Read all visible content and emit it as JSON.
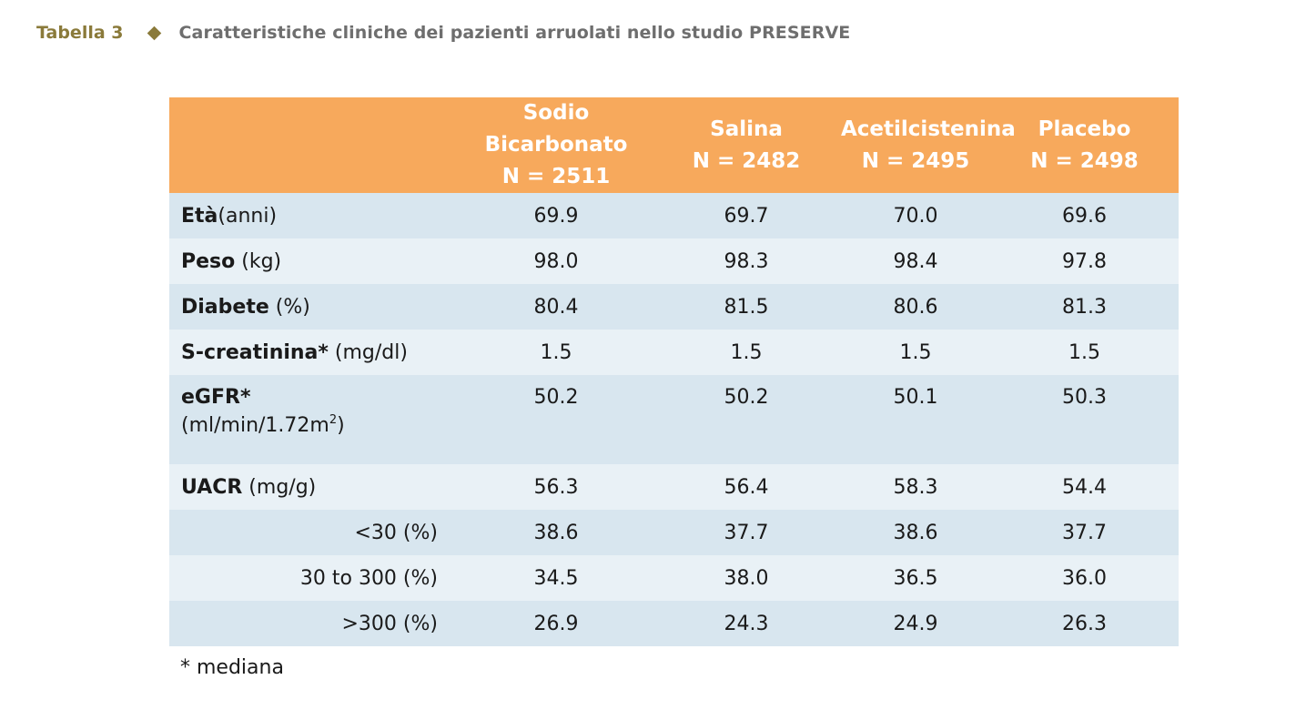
{
  "caption": {
    "label": "Tabella 3",
    "title": "Caratteristiche cliniche dei pazienti arruolati nello studio PRESERVE"
  },
  "table": {
    "columns": [
      {
        "name": "Sodio Bicarbonato",
        "n": "N = 2511"
      },
      {
        "name": "Salina",
        "n": "N = 2482"
      },
      {
        "name": "Acetilcistenina",
        "n": "N = 2495"
      },
      {
        "name": "Placebo",
        "n": "N = 2498"
      }
    ],
    "rows": [
      {
        "label_bold": "Età",
        "label_unit": "(anni)",
        "values": [
          "69.9",
          "69.7",
          "70.0",
          "69.6"
        ]
      },
      {
        "label_bold": "Peso",
        "label_unit": " (kg)",
        "values": [
          "98.0",
          "98.3",
          "98.4",
          "97.8"
        ]
      },
      {
        "label_bold": "Diabete",
        "label_unit": " (%)",
        "values": [
          "80.4",
          "81.5",
          "80.6",
          "81.3"
        ]
      },
      {
        "label_bold": "S-creatinina*",
        "label_unit": " (mg/dl)",
        "values": [
          "1.5",
          "1.5",
          "1.5",
          "1.5"
        ]
      },
      {
        "label_bold": "eGFR*",
        "label_unit": "(ml/min/1.72m",
        "label_sup": "2",
        "label_close": ")",
        "values": [
          "50.2",
          "50.2",
          "50.1",
          "50.3"
        ]
      },
      {
        "label_bold": "UACR",
        "label_unit": " (mg/g)",
        "values": [
          "56.3",
          "56.4",
          "58.3",
          "54.4"
        ]
      },
      {
        "label": "<30 (%)",
        "values": [
          "38.6",
          "37.7",
          "38.6",
          "37.7"
        ]
      },
      {
        "label": "30 to 300 (%)",
        "values": [
          "34.5",
          "38.0",
          "36.5",
          "36.0"
        ]
      },
      {
        "label": ">300 (%)",
        "values": [
          "26.9",
          "24.3",
          "24.9",
          "26.3"
        ]
      }
    ]
  },
  "footnote": "* mediana",
  "colors": {
    "caption_label": "#8a7a3a",
    "caption_title": "#6e6e6e",
    "header_bg": "#f7a95c",
    "row_dark": "#d8e6ef",
    "row_light": "#e9f1f6"
  }
}
